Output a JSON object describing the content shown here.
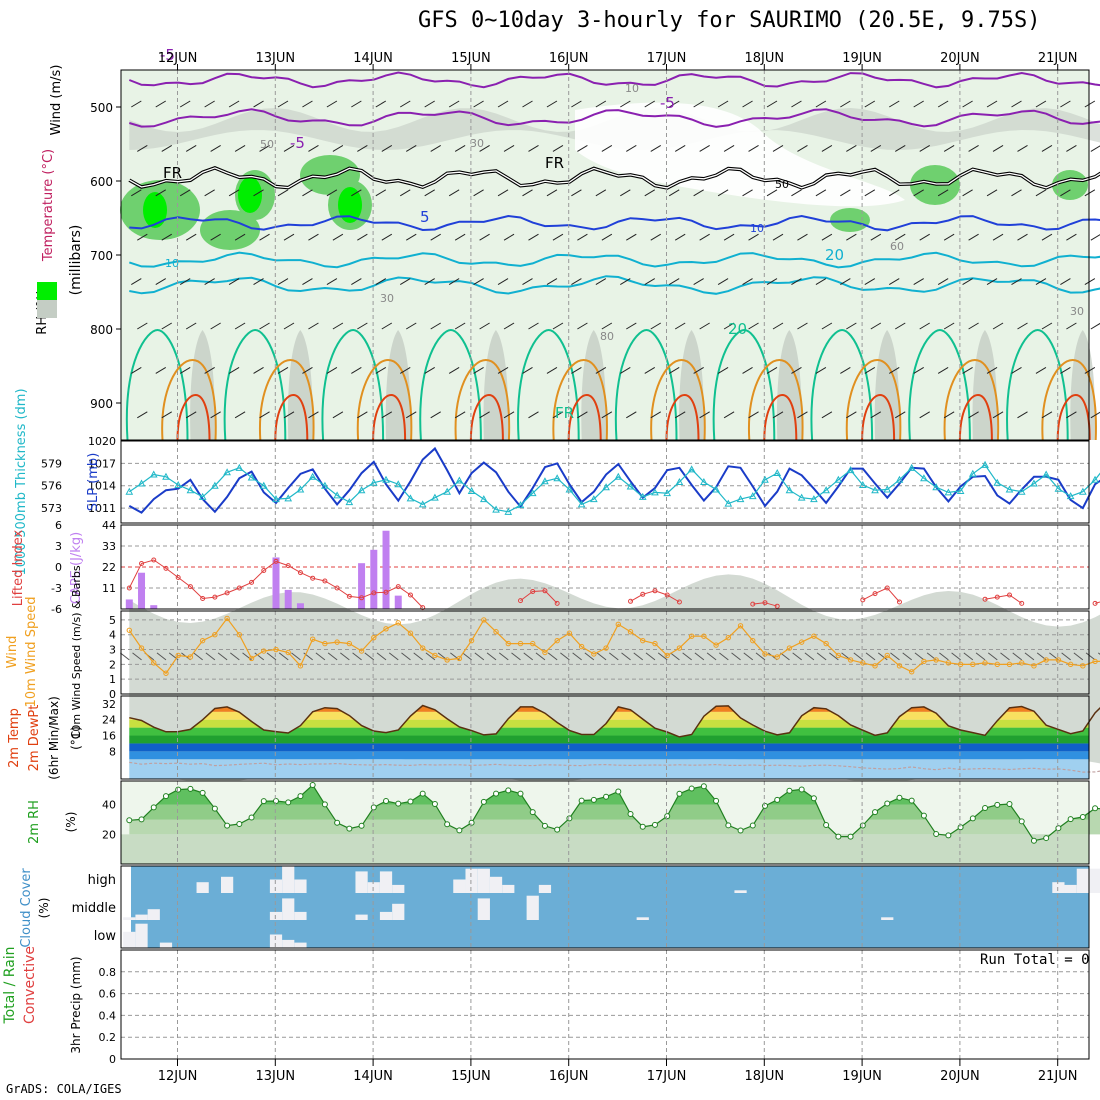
{
  "title": "GFS 0~10day 3-hourly for SAURIMO (20.5E, 9.75S)",
  "footer": "GrADS: COLA/IGES",
  "run_total": "Run Total = 0",
  "colors": {
    "rh_light": "#e8f3e6",
    "rh_mid": "#c4cdc4",
    "rh_green": "#6fd06f",
    "rh_bright": "#00ee00",
    "temp_purple": "#8a20b0",
    "temp_blue": "#2040d8",
    "temp_cyan": "#10b0d0",
    "temp_teal": "#10c090",
    "temp_orange": "#e09020",
    "temp_red": "#e04010",
    "slp": "#1a3cc8",
    "thickness": "#20b8c8",
    "lifted": "#e04040",
    "cape": "#c080f0",
    "wind": "#f0a020",
    "cloud": "#6baed6",
    "rh2m": "#60c060"
  },
  "x_axis": {
    "dates": [
      "12JUN",
      "13JUN",
      "14JUN",
      "15JUN",
      "16JUN",
      "17JUN",
      "18JUN",
      "19JUN",
      "20JUN",
      "21JUN"
    ]
  },
  "chart_data": [
    {
      "type": "contour",
      "name": "upper-air",
      "ylabel_parts": [
        "Wind (m/s)",
        "Temperature (°C)",
        "RH (%)",
        "(millibars)"
      ],
      "yticks": [
        500,
        600,
        700,
        800,
        900
      ],
      "ylim": [
        950,
        450
      ],
      "contour_labels": [
        "-5",
        "-5",
        "-5",
        "5",
        "10",
        "10",
        "20",
        "20",
        "FR",
        "FR",
        "FR",
        "50",
        "30",
        "10",
        "30",
        "50",
        "60",
        "80",
        "30"
      ]
    },
    {
      "type": "line",
      "name": "slp-thickness",
      "ylabel_left": "1000-500mb Thickness (dm)",
      "ylabel_right": "SLP (mb)",
      "yticks_left": [
        573,
        576,
        579
      ],
      "yticks_right": [
        1011,
        1014,
        1017,
        1020
      ],
      "ylim_right": [
        1009,
        1020
      ],
      "series": [
        {
          "name": "SLP",
          "values": [
            1011.3,
            1010.4,
            1012.2,
            1013.4,
            1013.6,
            1014.8,
            1012.2,
            1010.5,
            1012.5,
            1015.0,
            1015.9,
            1013.1,
            1011.7,
            1013.7,
            1015.6,
            1016.2,
            1013.6,
            1011.5,
            1013.4,
            1015.7,
            1017.2,
            1014.2,
            1012.0,
            1014.6,
            1017.5,
            1019.0,
            1016.1,
            1013.0,
            1015.7,
            1017.1,
            1015.8,
            1013.2,
            1011.2,
            1013.7,
            1016.5,
            1017.0,
            1014.2,
            1011.8,
            1013.2,
            1015.5,
            1016.9,
            1014.6,
            1012.4,
            1013.7,
            1016.1,
            1016.4,
            1014.1,
            1012.0,
            1013.8,
            1016.6,
            1016.4,
            1013.9,
            1011.3,
            1013.2,
            1016.3,
            1015.4,
            1013.6,
            1011.7,
            1013.9,
            1016.3,
            1016.3,
            1014.3,
            1012.4,
            1014.3,
            1016.4,
            1016.3,
            1013.8,
            1011.9,
            1013.9,
            1015.2,
            1015.3,
            1012.7,
            1011.6,
            1013.5,
            1015.2,
            1015.2,
            1014.8,
            1012.1,
            1011.0,
            1014.2,
            1015.3,
            1015.5,
            1014.7,
            1015.2,
            1016.6
          ]
        },
        {
          "name": "Thickness",
          "values": [
            575.2,
            576.3,
            577.5,
            577.2,
            576.1,
            575.4,
            574.5,
            576.0,
            577.8,
            578.4,
            577.1,
            576.0,
            574.2,
            574.3,
            575.5,
            577.2,
            576.0,
            574.7,
            573.8,
            575.4,
            576.4,
            576.8,
            576.2,
            574.3,
            573.5,
            574.4,
            575.2,
            576.7,
            575.3,
            574.2,
            572.8,
            572.5,
            573.4,
            575.0,
            576.6,
            577.0,
            575.5,
            573.5,
            574.2,
            575.8,
            577.2,
            575.9,
            574.5,
            575.1,
            575.0,
            576.5,
            578.2,
            576.5,
            575.5,
            573.6,
            574.2,
            574.6,
            576.8,
            577.7,
            575.4,
            574.4,
            574.2,
            575.4,
            576.8,
            578.1,
            576.1,
            575.4,
            575.5,
            576.8,
            578.4,
            577.0,
            575.8,
            575.1,
            575.3,
            577.6,
            578.8,
            576.4,
            575.5,
            575.2,
            576.3,
            577.5,
            575.6,
            574.6,
            575.2,
            576.8,
            578.9,
            577.0,
            574.9,
            575.4,
            575.8
          ]
        }
      ]
    },
    {
      "type": "bar",
      "name": "lifted-cape",
      "ylabel_left": "Lifted Index",
      "ylabel_right": "CAPE (J/kg)",
      "yticks_left": [
        "6",
        "3",
        "0",
        "-3",
        "-6"
      ],
      "yticks_right": [
        11,
        22,
        33,
        44
      ],
      "ylim_right": [
        0,
        44
      ],
      "cape_bars": [
        {
          "i": 0,
          "v": 5
        },
        {
          "i": 1,
          "v": 19
        },
        {
          "i": 2,
          "v": 2
        },
        {
          "i": 12,
          "v": 27
        },
        {
          "i": 13,
          "v": 10
        },
        {
          "i": 14,
          "v": 3
        },
        {
          "i": 19,
          "v": 24
        },
        {
          "i": 20,
          "v": 31
        },
        {
          "i": 21,
          "v": 41
        },
        {
          "i": 22,
          "v": 7
        }
      ],
      "lifted_index": [
        {
          "start": 0,
          "values": [
            3.0,
            -0.5,
            -1.0,
            0.2,
            1.5,
            2.8,
            4.5,
            4.3,
            3.7,
            3.0,
            2.2,
            0.5,
            -0.8,
            -0.2,
            0.8,
            1.6,
            2.0,
            3.0,
            4.2,
            4.4,
            3.7,
            3.6,
            2.8,
            4.0,
            5.8
          ]
        },
        {
          "start": 32,
          "values": [
            4.8,
            3.5,
            3.4,
            5.2
          ]
        },
        {
          "start": 41,
          "values": [
            4.9,
            3.9,
            3.4,
            4.0,
            5.0
          ]
        },
        {
          "start": 51,
          "values": [
            5.3,
            5.1,
            5.6
          ]
        },
        {
          "start": 60,
          "values": [
            4.7,
            3.8,
            3.0,
            5.0
          ]
        },
        {
          "start": 70,
          "values": [
            4.6,
            4.3,
            4.0,
            5.2
          ]
        },
        {
          "start": 79,
          "values": [
            5.2,
            4.7,
            3.8,
            5.6
          ]
        }
      ]
    },
    {
      "type": "line",
      "name": "wind10m",
      "ylabel": "10m Wind Speed (m/s) & Barbs",
      "yticks": [
        0,
        1,
        2,
        3,
        4,
        5
      ],
      "ylim": [
        0,
        5.6
      ],
      "series": [
        {
          "name": "Speed",
          "values": [
            4.3,
            3.1,
            2.1,
            1.4,
            2.6,
            2.5,
            3.6,
            4.0,
            5.1,
            4.0,
            2.4,
            2.9,
            3.0,
            2.8,
            1.9,
            3.7,
            3.4,
            3.5,
            3.4,
            2.9,
            3.8,
            4.4,
            4.8,
            4.1,
            3.1,
            2.6,
            2.3,
            2.4,
            3.6,
            5.0,
            4.2,
            3.4,
            3.4,
            3.4,
            2.8,
            3.6,
            4.1,
            3.2,
            2.7,
            3.1,
            4.7,
            4.2,
            3.6,
            3.4,
            2.6,
            3.1,
            3.9,
            3.9,
            3.3,
            3.8,
            4.6,
            3.6,
            2.7,
            2.5,
            3.1,
            3.5,
            3.9,
            3.4,
            2.6,
            2.3,
            2.1,
            1.9,
            2.6,
            1.9,
            1.5,
            2.2,
            2.3,
            2.1,
            2.0,
            2.0,
            2.1,
            2.0,
            2.0,
            2.1,
            1.9,
            2.3,
            2.3,
            2.0,
            1.9,
            2.2,
            2.2,
            2.1,
            1.9,
            2.1,
            2.0,
            2.0,
            1.9,
            2.0,
            1.5,
            1.1,
            1.5,
            0.3,
            0.8,
            1.6,
            2.0,
            1.6,
            2.2,
            2.2
          ]
        }
      ]
    },
    {
      "type": "area",
      "name": "temp2m",
      "ylabel": "2m Temp 2m DewPt (6hr Min/Max) (°C)",
      "yticks": [
        8,
        16,
        24,
        32
      ],
      "ytick_labels": [
        "8",
        "16",
        "24",
        "32"
      ],
      "ylim": [
        -6,
        36
      ],
      "series": [
        {
          "name": "Temp",
          "values": [
            25.0,
            23.6,
            20.2,
            17.9,
            18.0,
            19.1,
            24.0,
            29.7,
            30.5,
            27.8,
            23.1,
            18.8,
            18.0,
            17.3,
            21.0,
            28.0,
            30.1,
            29.6,
            26.1,
            21.0,
            18.3,
            17.5,
            18.8,
            25.9,
            31.2,
            29.0,
            24.5,
            20.3,
            18.5,
            16.3,
            16.8,
            24.5,
            30.5,
            30.5,
            27.3,
            22.6,
            18.6,
            16.5,
            16.5,
            22.1,
            30.5,
            29.0,
            24.3,
            19.7,
            17.8,
            15.3,
            16.5,
            25.8,
            30.8,
            31.0,
            24.9,
            21.3,
            18.2,
            16.3,
            17.4,
            26.0,
            30.1,
            29.5,
            26.1,
            21.3,
            18.7,
            16.1,
            17.4,
            25.6,
            30.1,
            30.5,
            27.3,
            20.9,
            18.8,
            17.5,
            16.1,
            23.5,
            30.0,
            30.7,
            28.3,
            21.2,
            19.1,
            16.9,
            18.3,
            27.5,
            33.5,
            32.6,
            28.5,
            22.1,
            19.4,
            16.5,
            16.7,
            26.2,
            33.9,
            34.2,
            27.6,
            23.1,
            21.0,
            18.4,
            19.3
          ]
        },
        {
          "name": "DewPt",
          "values": [
            2.4,
            1.5,
            2.0,
            1.8,
            2.0,
            1.5,
            1.8,
            0.8,
            1.0,
            1.4,
            1.7,
            2.0,
            1.2,
            1.6,
            1.3,
            1.6,
            1.6,
            1.8,
            1.4,
            1.2,
            1.1,
            1.3,
            1.0,
            0.9,
            1.3,
            1.1,
            1.2,
            1.2,
            0.9,
            1.1,
            1.4,
            1.0,
            0.9,
            0.8,
            1.2,
            1.1,
            0.9,
            0.8,
            1.2,
            1.3,
            1.0,
            0.9,
            1.0,
            1.1,
            1.0,
            1.2,
            1.0,
            1.1,
            1.3,
            0.9,
            0.9,
            1.1,
            0.8,
            1.0,
            0.8,
            0.5,
            0.9,
            1.0,
            0.7,
            0.2,
            -0.4,
            -0.7,
            -1.0,
            -0.7,
            0.1,
            -0.8,
            -1.3,
            -0.5,
            -1.2,
            -0.9,
            -0.7,
            -0.9,
            -1.2,
            -0.8,
            -0.6,
            -1.1,
            -0.9,
            -1.5,
            -2.5,
            -2.4,
            -1.4,
            -1.4,
            -1.0,
            -1.5,
            -1.1,
            -1.0,
            -0.5,
            -1.2,
            -1.5,
            -1.3,
            -1.3,
            -1.0,
            -0.5,
            -1.6,
            -1.1
          ]
        }
      ]
    },
    {
      "type": "area",
      "name": "rh2m",
      "ylabel": "2m RH (%)",
      "yticks": [
        20,
        40
      ],
      "ylim": [
        0,
        56
      ],
      "series": [
        {
          "name": "RH",
          "values": [
            29.5,
            30.1,
            38.2,
            45.8,
            50.2,
            50.7,
            48.0,
            37.4,
            25.9,
            27.0,
            31.4,
            42.4,
            42.5,
            41.6,
            45.8,
            53.3,
            40.2,
            27.8,
            23.9,
            25.8,
            38.2,
            42.5,
            40.7,
            42.2,
            47.5,
            40.5,
            26.8,
            22.7,
            27.8,
            41.9,
            47.5,
            49.7,
            47.5,
            35.0,
            25.7,
            23.2,
            30.8,
            42.8,
            43.3,
            45.4,
            48.9,
            33.7,
            25.1,
            26.4,
            32.3,
            47.4,
            50.9,
            52.5,
            42.6,
            26.1,
            22.6,
            26.0,
            39.2,
            43.3,
            49.4,
            50.3,
            44.4,
            26.3,
            18.5,
            18.5,
            26.0,
            35.0,
            40.8,
            44.7,
            42.8,
            32.6,
            20.2,
            19.3,
            24.8,
            30.8,
            37.8,
            39.9,
            40.5,
            28.8,
            15.7,
            17.5,
            24.2,
            30.3,
            31.7,
            37.6,
            36.9,
            26.5,
            16.4,
            17.2,
            26.1,
            33.0,
            35.7,
            37.7,
            42.3,
            40.2
          ]
        }
      ]
    },
    {
      "type": "bar",
      "name": "cloud",
      "ylabel": "Cloud Cover (%)",
      "ytick_labels": [
        "high",
        "middle",
        "low"
      ],
      "series": [
        {
          "name": "high",
          "blocks": [
            {
              "i": 6,
              "v": 0.4
            },
            {
              "i": 8,
              "v": 0.6
            },
            {
              "i": 12,
              "v": 0.5
            },
            {
              "i": 13,
              "v": 1.0
            },
            {
              "i": 14,
              "v": 0.5
            },
            {
              "i": 19,
              "v": 0.8
            },
            {
              "i": 20,
              "v": 0.4
            },
            {
              "i": 21,
              "v": 0.8
            },
            {
              "i": 22,
              "v": 0.3
            },
            {
              "i": 27,
              "v": 0.5
            },
            {
              "i": 28,
              "v": 0.9
            },
            {
              "i": 29,
              "v": 0.9
            },
            {
              "i": 30,
              "v": 0.6
            },
            {
              "i": 31,
              "v": 0.3
            },
            {
              "i": 34,
              "v": 0.3
            },
            {
              "i": 50,
              "v": 0.1
            },
            {
              "i": 76,
              "v": 0.4
            },
            {
              "i": 77,
              "v": 0.3
            },
            {
              "i": 78,
              "v": 0.9
            },
            {
              "i": 79,
              "v": 0.9
            },
            {
              "i": 80,
              "v": 0.2
            }
          ]
        },
        {
          "name": "middle",
          "blocks": [
            {
              "i": 0,
              "v": 0.1
            },
            {
              "i": 1,
              "v": 0.2
            },
            {
              "i": 2,
              "v": 0.4
            },
            {
              "i": 12,
              "v": 0.3
            },
            {
              "i": 13,
              "v": 0.8
            },
            {
              "i": 14,
              "v": 0.3
            },
            {
              "i": 19,
              "v": 0.2
            },
            {
              "i": 21,
              "v": 0.3
            },
            {
              "i": 22,
              "v": 0.6
            },
            {
              "i": 29,
              "v": 0.8
            },
            {
              "i": 33,
              "v": 0.9
            },
            {
              "i": 42,
              "v": 0.1
            },
            {
              "i": 62,
              "v": 0.1
            },
            {
              "i": 82,
              "v": 0.1
            },
            {
              "i": 90,
              "v": 0.4
            },
            {
              "i": 91,
              "v": 0.2
            }
          ]
        },
        {
          "name": "low",
          "blocks": [
            {
              "i": 0,
              "v": 0.6
            },
            {
              "i": 1,
              "v": 0.9
            },
            {
              "i": 3,
              "v": 0.2
            },
            {
              "i": 12,
              "v": 0.5
            },
            {
              "i": 13,
              "v": 0.3
            },
            {
              "i": 14,
              "v": 0.2
            }
          ]
        }
      ]
    },
    {
      "type": "bar",
      "name": "precip",
      "ylabel_parts": [
        "Total / Rain",
        "Convective",
        "3hr Precip (mm)"
      ],
      "yticks": [
        "0",
        "0.2",
        "0.4",
        "0.6",
        "0.8"
      ],
      "ylim": [
        0,
        1
      ],
      "values": []
    }
  ]
}
